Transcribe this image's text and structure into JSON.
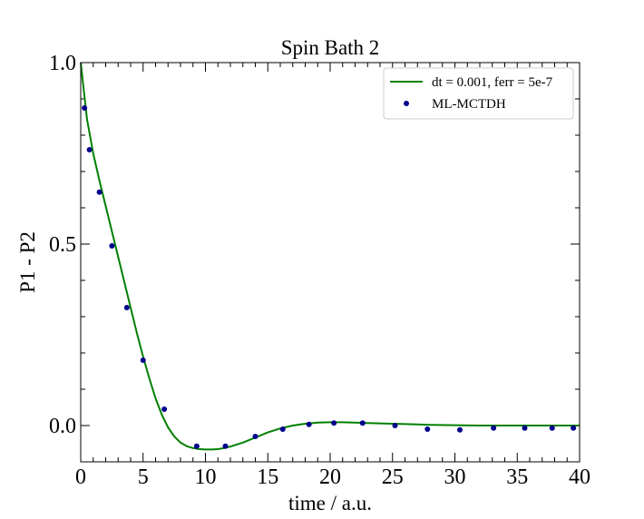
{
  "chart_data": {
    "type": "line",
    "title": "Spin Bath 2",
    "xlabel": "time / a.u.",
    "ylabel": "P1 - P2",
    "xlim": [
      0,
      40
    ],
    "ylim": [
      -0.1,
      1.0
    ],
    "x_ticks": [
      0,
      5,
      10,
      15,
      20,
      25,
      30,
      35,
      40
    ],
    "x_tick_labels": [
      "0",
      "5",
      "10",
      "15",
      "20",
      "25",
      "30",
      "35",
      "40"
    ],
    "y_ticks": [
      0.0,
      0.5,
      1.0
    ],
    "y_tick_labels": [
      "0.0",
      "0.5",
      "1.0"
    ],
    "grid": false,
    "legend_position": "top-right",
    "series": [
      {
        "name": "dt = 0.001, ferr = 5e-7",
        "kind": "line",
        "color": "#008000",
        "x": [
          0,
          0.5,
          1,
          1.5,
          2,
          2.5,
          3,
          3.5,
          4,
          4.5,
          5,
          5.5,
          6,
          6.5,
          7,
          7.5,
          8,
          8.5,
          9,
          9.5,
          10,
          10.5,
          11,
          11.5,
          12,
          13,
          14,
          15,
          16,
          17,
          18,
          19,
          20,
          21,
          22,
          23,
          24,
          25,
          26,
          27,
          28,
          30,
          32,
          34,
          36,
          38,
          40
        ],
        "y": [
          1.0,
          0.845,
          0.75,
          0.675,
          0.605,
          0.535,
          0.465,
          0.395,
          0.325,
          0.255,
          0.19,
          0.13,
          0.075,
          0.03,
          -0.005,
          -0.03,
          -0.047,
          -0.057,
          -0.062,
          -0.065,
          -0.066,
          -0.066,
          -0.065,
          -0.062,
          -0.058,
          -0.047,
          -0.033,
          -0.019,
          -0.008,
          0.0,
          0.005,
          0.008,
          0.009,
          0.009,
          0.008,
          0.007,
          0.006,
          0.005,
          0.004,
          0.003,
          0.002,
          0.001,
          0.0,
          0.0,
          0.0,
          0.0,
          0.0
        ]
      },
      {
        "name": "ML-MCTDH",
        "kind": "scatter",
        "color": "#00008b",
        "x": [
          0.3,
          0.7,
          1.5,
          2.5,
          3.7,
          5.0,
          6.7,
          9.3,
          11.6,
          14.0,
          16.2,
          18.3,
          20.3,
          22.6,
          25.2,
          27.8,
          30.4,
          33.1,
          35.6,
          37.8,
          39.5
        ],
        "y": [
          0.875,
          0.76,
          0.643,
          0.495,
          0.325,
          0.18,
          0.045,
          -0.057,
          -0.057,
          -0.03,
          -0.01,
          0.003,
          0.007,
          0.007,
          0.0,
          -0.01,
          -0.012,
          -0.007,
          -0.007,
          -0.007,
          -0.007
        ]
      }
    ]
  }
}
